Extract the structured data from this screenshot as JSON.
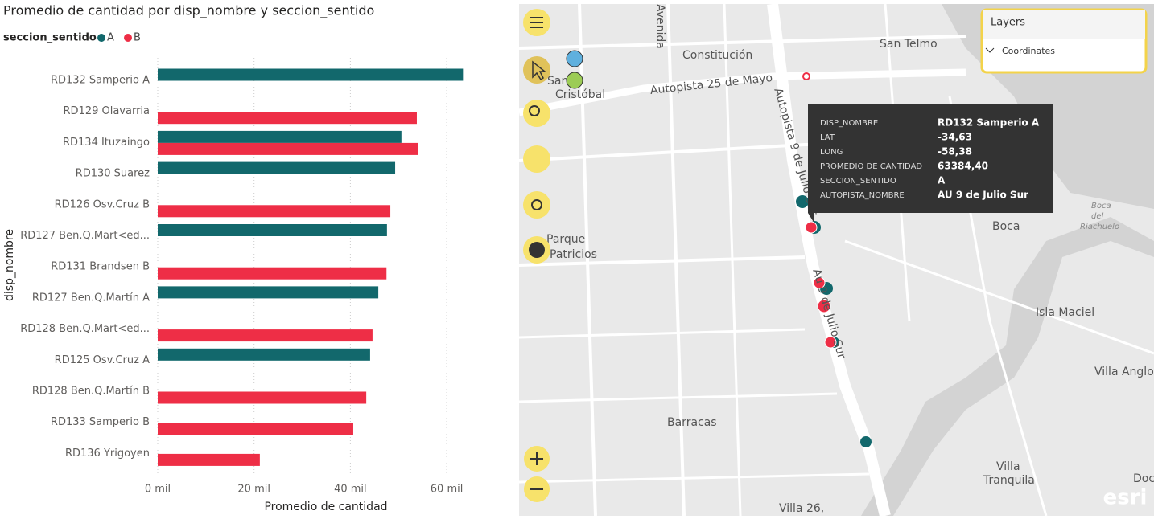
{
  "chart_data": {
    "type": "bar",
    "orientation": "horizontal",
    "title": "Promedio de cantidad por disp_nombre y seccion_sentido",
    "legend_title": "seccion_sentido",
    "x_label": "Promedio de cantidad",
    "y_label": "disp_nombre",
    "categories": [
      "RD132 Samperio A",
      "RD129 Olavarria",
      "RD134 Ituzaingo",
      "RD130 Suarez",
      "RD126 Osv.Cruz B",
      "RD127 Ben.Q.Mart<ed...",
      "RD131 Brandsen B",
      "RD127 Ben.Q.Martín A",
      "RD128 Ben.Q.Mart<ed...",
      "RD125 Osv.Cruz A",
      "RD128 Ben.Q.Martín B",
      "RD133 Samperio B",
      "RD136 Yrigoyen"
    ],
    "series": [
      {
        "name": "A",
        "color": "#12686c",
        "values": [
          63384.4,
          null,
          50600,
          49300,
          null,
          47600,
          null,
          45800,
          null,
          44100,
          null,
          null,
          null
        ]
      },
      {
        "name": "B",
        "color": "#ee2e46",
        "values": [
          null,
          53800,
          54000,
          null,
          48300,
          null,
          47500,
          null,
          44600,
          null,
          43300,
          40600,
          21200
        ]
      }
    ],
    "xlim": [
      0,
      65000
    ],
    "xticks": [
      {
        "value": 0,
        "label": "0 mil"
      },
      {
        "value": 20000,
        "label": "20 mil"
      },
      {
        "value": 40000,
        "label": "40 mil"
      },
      {
        "value": 60000,
        "label": "60 mil"
      }
    ],
    "grid": true
  },
  "map": {
    "labels": [
      "Constitución",
      "San Telmo",
      "Autopista 25 de Mayo",
      "San",
      "Cristóbal",
      "Autopista 9 de Julio Sur",
      "Parque",
      "Patricios",
      "Boca",
      "Boca",
      "del",
      "Riachuelo",
      "Isla Maciel",
      "Villa Anglo",
      "Barracas",
      "Villa",
      "Tranquila",
      "Villa 26,",
      "Doc",
      "Avenida",
      "Au 9 de Julio Sur"
    ],
    "layers_panel": {
      "title": "Layers",
      "layer": "Coordinates"
    },
    "tooltip": [
      [
        "DISP_NOMBRE",
        "RD132 Samperio A"
      ],
      [
        "LAT",
        "-34,63"
      ],
      [
        "LONG",
        "-58,38"
      ],
      [
        "PROMEDIO DE CANTIDAD",
        "63384,40"
      ],
      [
        "SECCION_SENTIDO",
        "A"
      ],
      [
        "AUTOPISTA_NOMBRE",
        "AU 9 de Julio Sur"
      ]
    ],
    "logo": "esri"
  }
}
